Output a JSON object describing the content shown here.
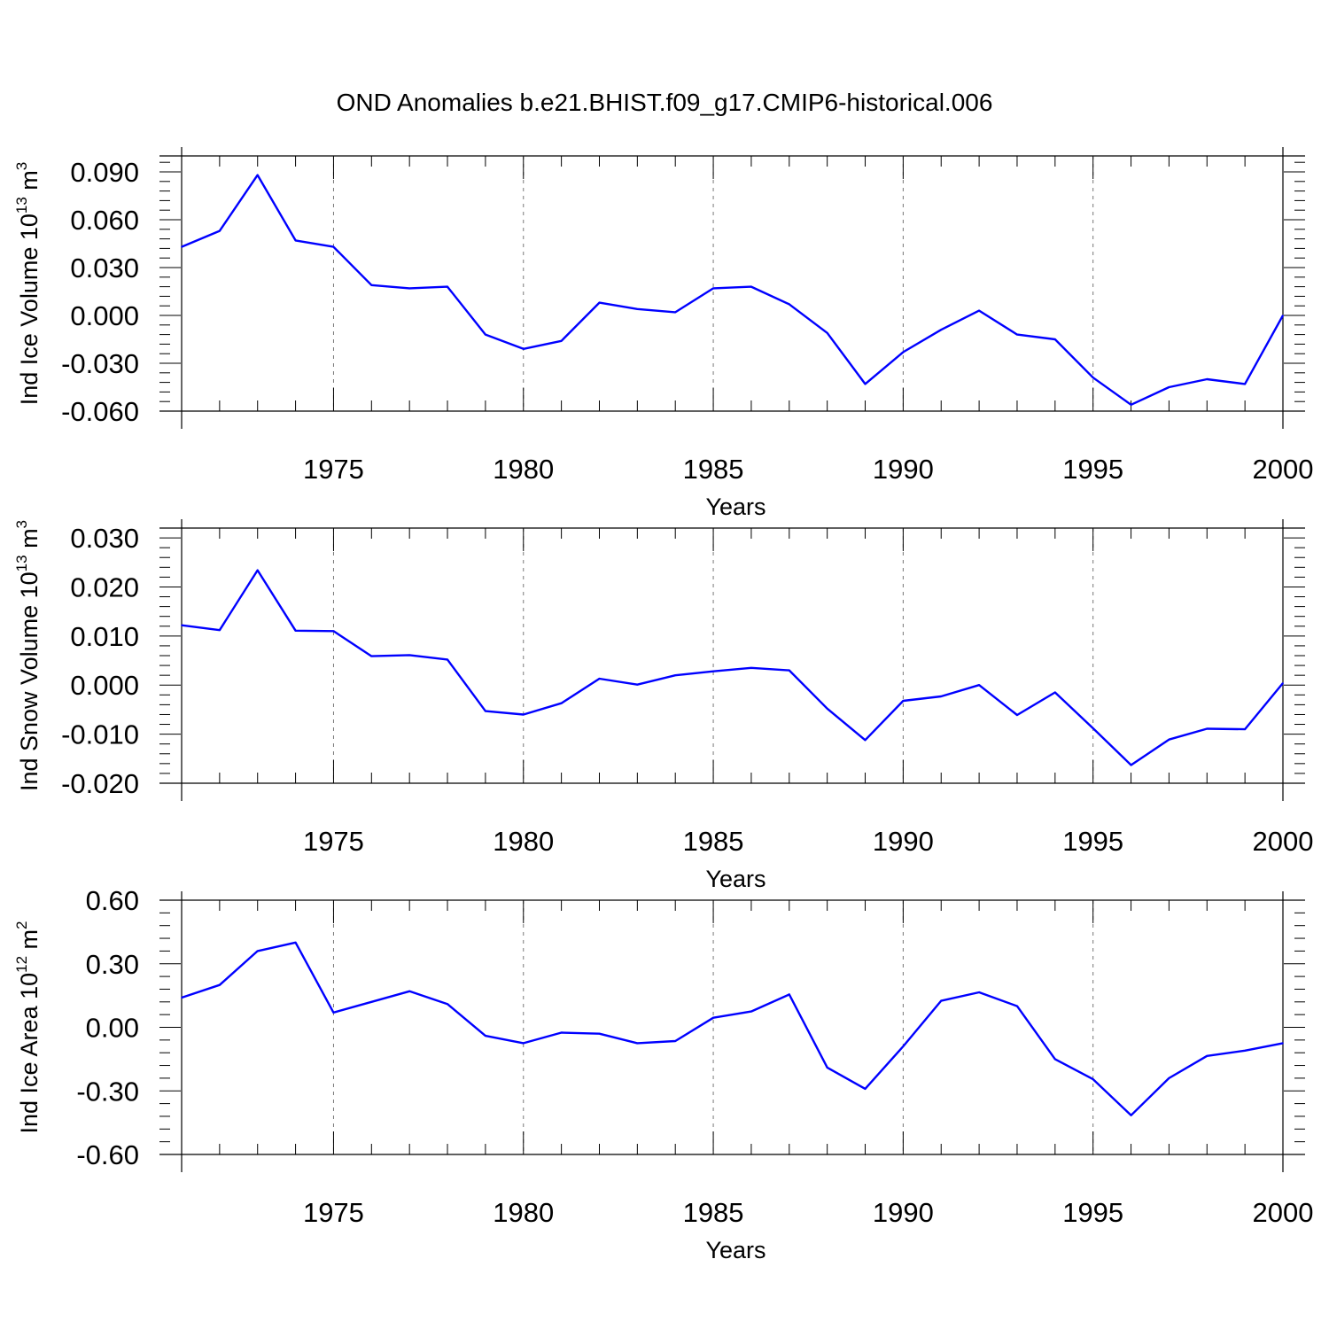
{
  "title": "OND Anomalies b.e21.BHIST.f09_g17.CMIP6-historical.006",
  "line_color": "#0000ff",
  "chart_data": [
    {
      "type": "line",
      "xlabel": "Years",
      "ylabel": "Ind Ice Volume 10",
      "ylabel_exp": "13",
      "ylabel_unit": " m",
      "ylabel_unit_exp": "3",
      "xlim": [
        1971,
        2000
      ],
      "ylim": [
        -0.06,
        0.1
      ],
      "yticks": [
        -0.06,
        -0.03,
        0.0,
        0.03,
        0.06,
        0.09
      ],
      "ytick_labels": [
        "-0.060",
        "-0.030",
        "0.000",
        "0.030",
        "0.060",
        "0.090"
      ],
      "xticks": [
        1975,
        1980,
        1985,
        1990,
        1995,
        2000
      ],
      "xtick_labels": [
        "1975",
        "1980",
        "1985",
        "1990",
        "1995",
        "2000"
      ],
      "grid": "vertical dashed at labeled years",
      "x": [
        1971,
        1972,
        1973,
        1974,
        1975,
        1976,
        1977,
        1978,
        1979,
        1980,
        1981,
        1982,
        1983,
        1984,
        1985,
        1986,
        1987,
        1988,
        1989,
        1990,
        1991,
        1992,
        1993,
        1994,
        1995,
        1996,
        1997,
        1998,
        1999,
        2000
      ],
      "values": [
        0.043,
        0.053,
        0.088,
        0.047,
        0.043,
        0.019,
        0.017,
        0.018,
        -0.012,
        -0.021,
        -0.016,
        0.008,
        0.004,
        0.002,
        0.017,
        0.018,
        0.007,
        -0.011,
        -0.043,
        -0.023,
        -0.009,
        0.003,
        -0.012,
        -0.015,
        -0.039,
        -0.056,
        -0.045,
        -0.04,
        -0.043,
        0.0
      ]
    },
    {
      "type": "line",
      "xlabel": "Years",
      "ylabel": "Ind Snow Volume 10",
      "ylabel_exp": "13",
      "ylabel_unit": " m",
      "ylabel_unit_exp": "3",
      "xlim": [
        1971,
        2000
      ],
      "ylim": [
        -0.02,
        0.032
      ],
      "yticks": [
        -0.02,
        -0.01,
        0.0,
        0.01,
        0.02,
        0.03
      ],
      "ytick_labels": [
        "-0.020",
        "-0.010",
        "0.000",
        "0.010",
        "0.020",
        "0.030"
      ],
      "xticks": [
        1975,
        1980,
        1985,
        1990,
        1995,
        2000
      ],
      "xtick_labels": [
        "1975",
        "1980",
        "1985",
        "1990",
        "1995",
        "2000"
      ],
      "grid": "vertical dashed at labeled years",
      "x": [
        1971,
        1972,
        1973,
        1974,
        1975,
        1976,
        1977,
        1978,
        1979,
        1980,
        1981,
        1982,
        1983,
        1984,
        1985,
        1986,
        1987,
        1988,
        1989,
        1990,
        1991,
        1992,
        1993,
        1994,
        1995,
        1996,
        1997,
        1998,
        1999,
        2000
      ],
      "values": [
        0.0122,
        0.0112,
        0.0234,
        0.0111,
        0.011,
        0.0059,
        0.0061,
        0.0052,
        -0.0053,
        -0.006,
        -0.0037,
        0.0013,
        0.0001,
        0.002,
        0.0028,
        0.0035,
        0.003,
        -0.0048,
        -0.0112,
        -0.0032,
        -0.0023,
        0.0,
        -0.0061,
        -0.0015,
        -0.0088,
        -0.0163,
        -0.0111,
        -0.0089,
        -0.009,
        0.0004
      ]
    },
    {
      "type": "line",
      "xlabel": "Years",
      "ylabel": "Ind Ice Area 10",
      "ylabel_exp": "12",
      "ylabel_unit": " m",
      "ylabel_unit_exp": "2",
      "xlim": [
        1971,
        2000
      ],
      "ylim": [
        -0.6,
        0.6
      ],
      "yticks": [
        -0.6,
        -0.3,
        0.0,
        0.3,
        0.6
      ],
      "ytick_labels": [
        "-0.60",
        "-0.30",
        "0.00",
        "0.30",
        "0.60"
      ],
      "xticks": [
        1975,
        1980,
        1985,
        1990,
        1995,
        2000
      ],
      "xtick_labels": [
        "1975",
        "1980",
        "1985",
        "1990",
        "1995",
        "2000"
      ],
      "grid": "vertical dashed at labeled years",
      "x": [
        1971,
        1972,
        1973,
        1974,
        1975,
        1976,
        1977,
        1978,
        1979,
        1980,
        1981,
        1982,
        1983,
        1984,
        1985,
        1986,
        1987,
        1988,
        1989,
        1990,
        1991,
        1992,
        1993,
        1994,
        1995,
        1996,
        1997,
        1998,
        1999,
        2000
      ],
      "values": [
        0.14,
        0.2,
        0.36,
        0.4,
        0.07,
        0.12,
        0.17,
        0.11,
        -0.04,
        -0.075,
        -0.025,
        -0.03,
        -0.075,
        -0.065,
        0.045,
        0.075,
        0.155,
        -0.19,
        -0.29,
        -0.09,
        0.125,
        0.165,
        0.1,
        -0.15,
        -0.245,
        -0.415,
        -0.24,
        -0.135,
        -0.11,
        -0.075
      ]
    }
  ]
}
